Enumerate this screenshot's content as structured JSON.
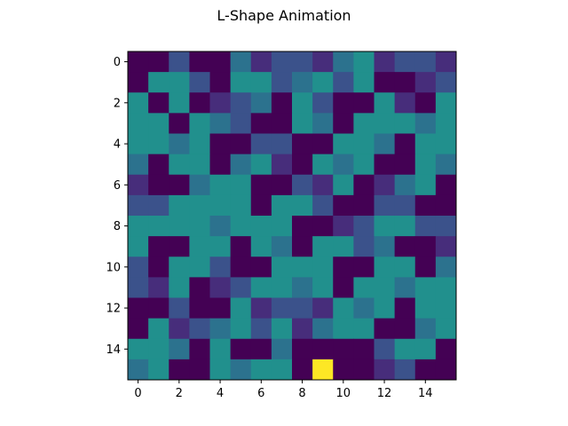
{
  "chart_data": {
    "type": "heatmap",
    "title": "L-Shape Animation",
    "xlabel": "",
    "ylabel": "",
    "x_ticks": [
      0,
      2,
      4,
      6,
      8,
      10,
      12,
      14
    ],
    "y_ticks": [
      0,
      2,
      4,
      6,
      8,
      10,
      12,
      14
    ],
    "xlim": [
      -0.5,
      15.5
    ],
    "ylim": [
      15.5,
      -0.5
    ],
    "colormap": "viridis",
    "colors": {
      "0": "#440154",
      "1": "#3b528b",
      "2": "#21908d",
      "3": "#fde725",
      "1b": "#472d7b",
      "2b": "#2c728e"
    },
    "grid": false,
    "matrix": [
      [
        0,
        0,
        1,
        0,
        0,
        2,
        1,
        1,
        1,
        1,
        2,
        2,
        1,
        1,
        1,
        1
      ],
      [
        0,
        2,
        2,
        1,
        0,
        2,
        2,
        1,
        2,
        2,
        1,
        2,
        0,
        0,
        1,
        1
      ],
      [
        2,
        0,
        2,
        0,
        1,
        1,
        2,
        0,
        2,
        1,
        0,
        0,
        2,
        1,
        0,
        2
      ],
      [
        2,
        2,
        0,
        2,
        2,
        1,
        0,
        0,
        2,
        2,
        0,
        2,
        2,
        2,
        2,
        2
      ],
      [
        2,
        2,
        2,
        2,
        0,
        0,
        1,
        1,
        0,
        0,
        2,
        2,
        2,
        0,
        2,
        2
      ],
      [
        2,
        0,
        2,
        2,
        0,
        2,
        2,
        1,
        0,
        2,
        2,
        2,
        0,
        0,
        2,
        2
      ],
      [
        1,
        0,
        0,
        2,
        2,
        2,
        0,
        0,
        1,
        1,
        2,
        0,
        1,
        2,
        2,
        0
      ],
      [
        1,
        1,
        2,
        2,
        2,
        2,
        0,
        2,
        2,
        1,
        0,
        0,
        1,
        1,
        0,
        0
      ],
      [
        2,
        2,
        2,
        2,
        2,
        2,
        2,
        2,
        0,
        0,
        1,
        1,
        2,
        2,
        1,
        1
      ],
      [
        2,
        0,
        0,
        2,
        2,
        0,
        2,
        2,
        0,
        2,
        2,
        1,
        2,
        0,
        0,
        1
      ],
      [
        1,
        0,
        2,
        2,
        1,
        0,
        0,
        2,
        2,
        2,
        0,
        0,
        2,
        2,
        0,
        2
      ],
      [
        1,
        1,
        2,
        0,
        1,
        1,
        2,
        2,
        2,
        2,
        0,
        2,
        2,
        2,
        2,
        2
      ],
      [
        0,
        0,
        1,
        0,
        0,
        2,
        1,
        1,
        1,
        1,
        2,
        2,
        2,
        0,
        2,
        2
      ],
      [
        0,
        2,
        1,
        1,
        2,
        2,
        1,
        2,
        1,
        2,
        2,
        2,
        0,
        0,
        2,
        2
      ],
      [
        2,
        2,
        2,
        0,
        2,
        0,
        0,
        2,
        0,
        0,
        0,
        0,
        1,
        2,
        2,
        0
      ],
      [
        2,
        2,
        0,
        0,
        2,
        2,
        2,
        2,
        0,
        3,
        0,
        0,
        1,
        1,
        0,
        0
      ]
    ]
  }
}
